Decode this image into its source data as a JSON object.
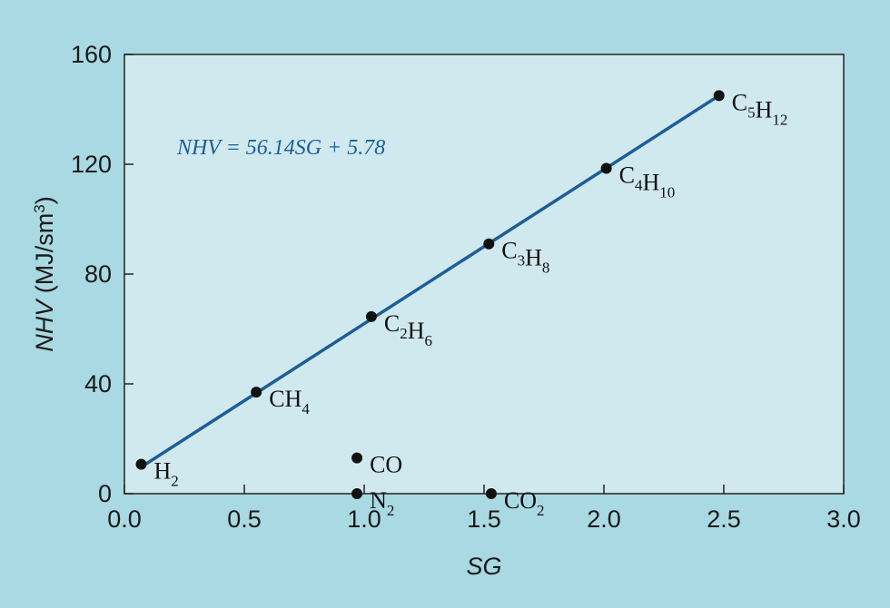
{
  "chart_data": {
    "type": "scatter",
    "xlabel": "SG",
    "ylabel": "NHV",
    "ylabel_unit_prefix": " (MJ/sm",
    "ylabel_unit_sup": "3",
    "ylabel_unit_suffix": ")",
    "xlim": [
      0.0,
      3.0
    ],
    "ylim": [
      0,
      160
    ],
    "x_ticks": [
      "0.0",
      "0.5",
      "1.0",
      "1.5",
      "2.0",
      "2.5",
      "3.0"
    ],
    "y_ticks": [
      "0",
      "40",
      "80",
      "120",
      "160"
    ],
    "grid": false,
    "points": [
      {
        "label": "H",
        "sub": "2",
        "x": 0.07,
        "y": 10.7
      },
      {
        "label": "CH",
        "sub": "4",
        "x": 0.55,
        "y": 37
      },
      {
        "label": "C2H6",
        "parts": [
          [
            "C",
            ""
          ],
          [
            "2",
            "sub"
          ],
          [
            "H",
            ""
          ],
          [
            "6",
            "sub"
          ]
        ],
        "x": 1.03,
        "y": 64.5
      },
      {
        "label": "C3H8",
        "parts": [
          [
            "C",
            ""
          ],
          [
            "3",
            "sub"
          ],
          [
            "H",
            ""
          ],
          [
            "8",
            "sub"
          ]
        ],
        "x": 1.52,
        "y": 91
      },
      {
        "label": "C4H10",
        "parts": [
          [
            "C",
            ""
          ],
          [
            "4",
            "sub"
          ],
          [
            "H",
            ""
          ],
          [
            "10",
            "sub"
          ]
        ],
        "x": 2.01,
        "y": 118.5
      },
      {
        "label": "C5H12",
        "parts": [
          [
            "C",
            ""
          ],
          [
            "5",
            "sub"
          ],
          [
            "H",
            ""
          ],
          [
            "12",
            "sub"
          ]
        ],
        "x": 2.48,
        "y": 145
      },
      {
        "label": "CO",
        "x": 0.97,
        "y": 13
      },
      {
        "label": "N",
        "sub": "2",
        "x": 0.97,
        "y": 0
      },
      {
        "label": "CO",
        "sub": "2",
        "x": 1.53,
        "y": 0
      }
    ],
    "fit_line": {
      "equation_text": "NHV = 56.14SG + 5.78",
      "slope": 56.14,
      "intercept": 5.78,
      "x_range": [
        0.07,
        2.48
      ]
    }
  },
  "colors": {
    "page_background": "#a9d9e2",
    "plot_background": "#d0e9ef",
    "fit_line": "#1d5e95",
    "points": "#111111",
    "axis": "#222222"
  }
}
